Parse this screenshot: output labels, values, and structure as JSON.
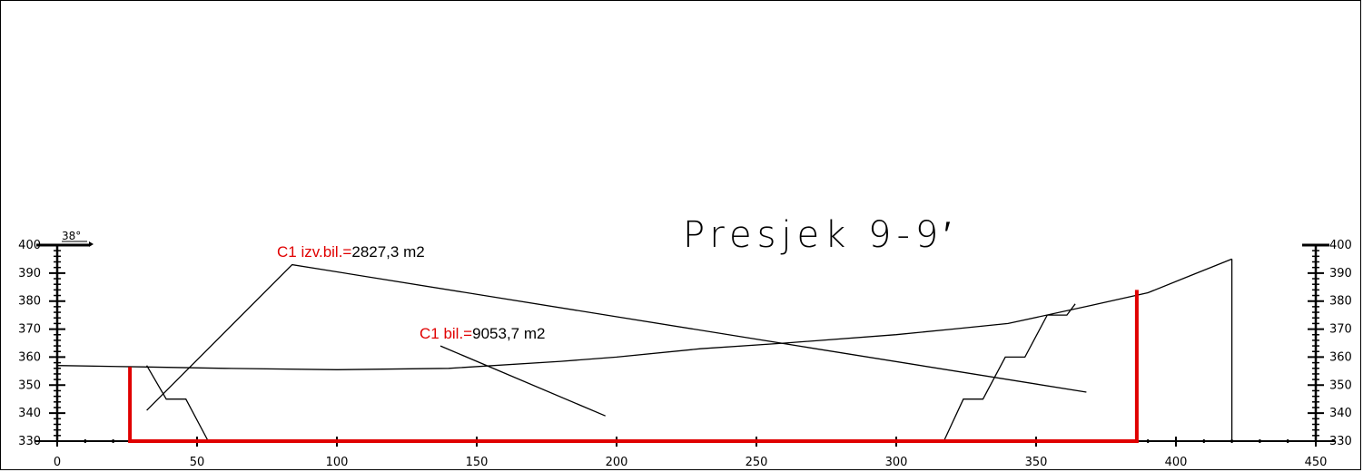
{
  "title": "Presjek 9-9′",
  "angle_label": "38°",
  "annotations": {
    "a1_label": "C1 izv.bil.=",
    "a1_value": "2827,3 m2",
    "a2_label": "C1 bil.=",
    "a2_value": "9053,7 m2"
  },
  "colors": {
    "line": "#000000",
    "red": "#e00000"
  },
  "chart_data": {
    "type": "line",
    "x_ticks": [
      "0",
      "50",
      "100",
      "150",
      "200",
      "250",
      "300",
      "350",
      "400",
      "450"
    ],
    "y_ticks": [
      "330",
      "340",
      "350",
      "360",
      "370",
      "380",
      "390",
      "400"
    ],
    "xlim": [
      0,
      450
    ],
    "ylim": [
      330,
      400
    ],
    "series": [
      {
        "role": "terrain",
        "points": [
          [
            0,
            357
          ],
          [
            30,
            356.5
          ],
          [
            60,
            356
          ],
          [
            100,
            355.5
          ],
          [
            140,
            356
          ],
          [
            180,
            358.5
          ],
          [
            200,
            360
          ],
          [
            230,
            363
          ],
          [
            260,
            365
          ],
          [
            300,
            368
          ],
          [
            320,
            370
          ],
          [
            340,
            372
          ],
          [
            370,
            378.5
          ],
          [
            390,
            383
          ],
          [
            405,
            389
          ],
          [
            420,
            395
          ]
        ]
      },
      {
        "role": "excavation",
        "points": [
          [
            32,
            357
          ],
          [
            39,
            345
          ],
          [
            46,
            345
          ],
          [
            54,
            330
          ],
          [
            317,
            330
          ],
          [
            324,
            345
          ],
          [
            331,
            345
          ],
          [
            339,
            360
          ],
          [
            346,
            360
          ],
          [
            354,
            375
          ],
          [
            361,
            375
          ],
          [
            364,
            379
          ]
        ]
      },
      {
        "role": "red-boundary",
        "points": [
          [
            26,
            356.5
          ],
          [
            26,
            330
          ],
          [
            386,
            330
          ],
          [
            386,
            384
          ]
        ]
      },
      {
        "role": "leader-1",
        "points": [
          [
            32,
            341
          ],
          [
            84,
            393
          ],
          [
            368,
            347.5
          ]
        ]
      },
      {
        "role": "leader-2",
        "points": [
          [
            137,
            364
          ],
          [
            196,
            339
          ]
        ]
      },
      {
        "role": "right-edge",
        "points": [
          [
            420,
            395
          ],
          [
            420,
            330
          ]
        ]
      }
    ]
  }
}
